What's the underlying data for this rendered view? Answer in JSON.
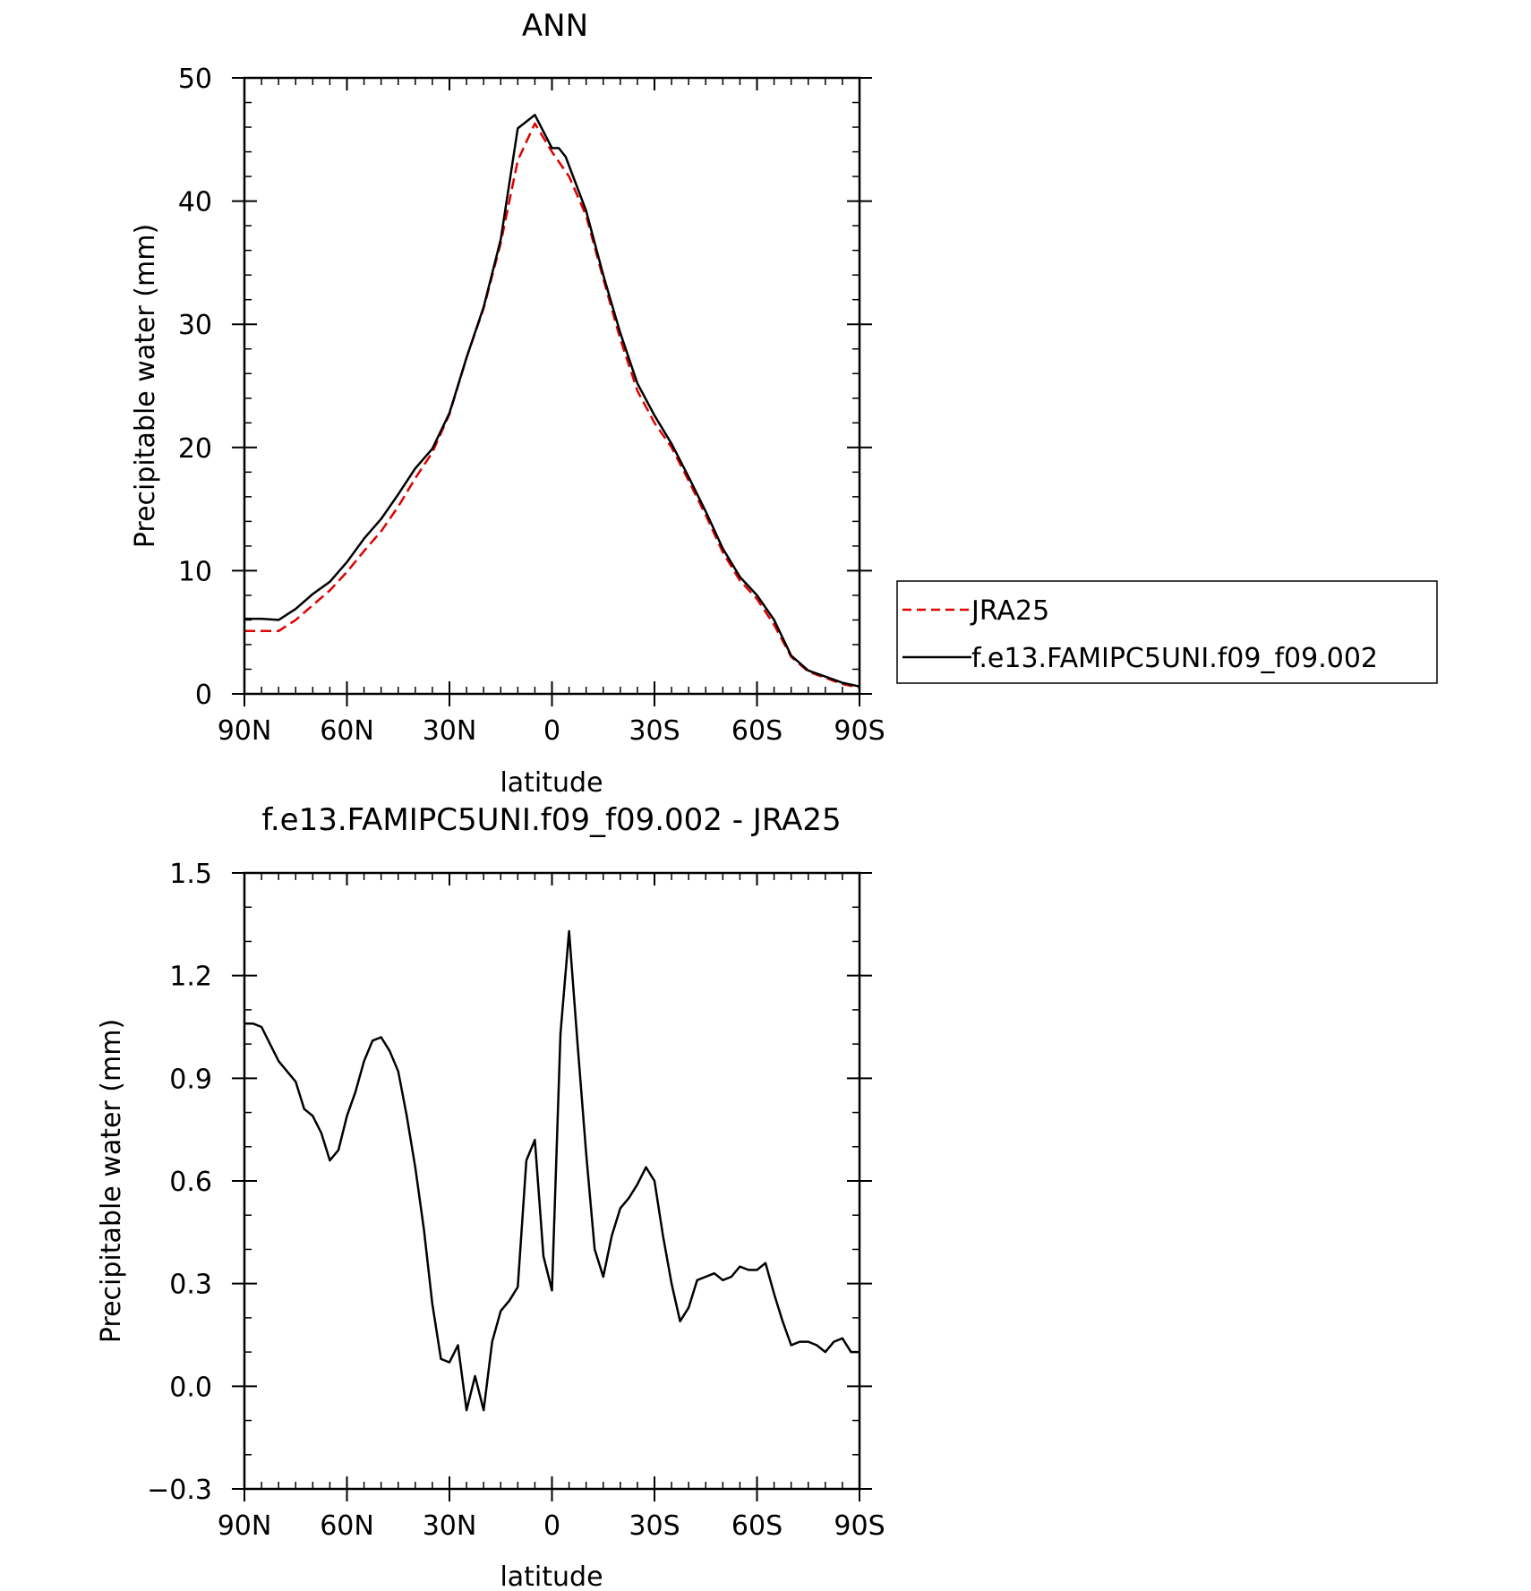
{
  "chart_data": [
    {
      "type": "line",
      "title": "ANN",
      "xlabel": "latitude",
      "ylabel": "Precipitable water (mm)",
      "xlim": [
        90,
        -90
      ],
      "ylim": [
        0,
        50
      ],
      "xticks": [
        {
          "value": 90,
          "label": "90N"
        },
        {
          "value": 60,
          "label": "60N"
        },
        {
          "value": 30,
          "label": "30N"
        },
        {
          "value": 0,
          "label": "0"
        },
        {
          "value": -30,
          "label": "30S"
        },
        {
          "value": -60,
          "label": "60S"
        },
        {
          "value": -90,
          "label": "90S"
        }
      ],
      "yticks": [
        {
          "value": 0,
          "label": "0"
        },
        {
          "value": 10,
          "label": "10"
        },
        {
          "value": 20,
          "label": "20"
        },
        {
          "value": 30,
          "label": "30"
        },
        {
          "value": 40,
          "label": "40"
        },
        {
          "value": 50,
          "label": "50"
        }
      ],
      "legend": "right",
      "series": [
        {
          "name": "JRA25",
          "color": "#e00000",
          "style": "dashed",
          "x": [
            90,
            85,
            80,
            75,
            70,
            65,
            60,
            55,
            50,
            45,
            40,
            35,
            30,
            25,
            20,
            15,
            10,
            5,
            0,
            -5,
            -10,
            -15,
            -20,
            -25,
            -30,
            -35,
            -40,
            -45,
            -50,
            -55,
            -60,
            -65,
            -70,
            -75,
            -80,
            -85,
            -90
          ],
          "y": [
            5.1,
            5.1,
            5.1,
            6.0,
            7.2,
            8.4,
            9.9,
            11.6,
            13.2,
            15.2,
            17.5,
            19.6,
            22.7,
            27.3,
            31.3,
            36.6,
            43.3,
            46.3,
            44.0,
            42.0,
            38.8,
            33.7,
            28.8,
            24.6,
            22.0,
            20.0,
            17.3,
            14.5,
            11.5,
            9.2,
            7.7,
            5.6,
            3.0,
            1.8,
            1.3,
            0.8,
            0.5
          ]
        },
        {
          "name": "f.e13.FAMIPC5UNI.f09_f09.002",
          "color": "#000000",
          "style": "solid",
          "x": [
            90,
            85,
            80,
            75,
            70,
            65,
            60,
            55,
            50,
            45,
            40,
            35,
            30,
            25,
            20,
            15,
            10,
            5,
            0,
            -2,
            -4,
            -10,
            -15,
            -20,
            -25,
            -30,
            -35,
            -40,
            -45,
            -50,
            -55,
            -60,
            -65,
            -70,
            -75,
            -80,
            -85,
            -90
          ],
          "y": [
            6.1,
            6.1,
            6.0,
            6.9,
            8.1,
            9.1,
            10.7,
            12.6,
            14.2,
            16.2,
            18.3,
            19.9,
            22.8,
            27.3,
            31.4,
            36.9,
            45.9,
            47.0,
            44.3,
            44.3,
            43.6,
            39.2,
            34.0,
            29.3,
            25.2,
            22.6,
            20.3,
            17.6,
            14.8,
            11.8,
            9.5,
            8.0,
            6.0,
            3.1,
            1.9,
            1.4,
            0.9,
            0.6
          ]
        }
      ]
    },
    {
      "type": "line",
      "title": "f.e13.FAMIPC5UNI.f09_f09.002 - JRA25",
      "xlabel": "latitude",
      "ylabel": "Precipitable water (mm)",
      "xlim": [
        90,
        -90
      ],
      "ylim": [
        -0.3,
        1.5
      ],
      "xticks": [
        {
          "value": 90,
          "label": "90N"
        },
        {
          "value": 60,
          "label": "60N"
        },
        {
          "value": 30,
          "label": "30N"
        },
        {
          "value": 0,
          "label": "0"
        },
        {
          "value": -30,
          "label": "30S"
        },
        {
          "value": -60,
          "label": "60S"
        },
        {
          "value": -90,
          "label": "90S"
        }
      ],
      "yticks": [
        {
          "value": -0.3,
          "label": "−0.3"
        },
        {
          "value": 0.0,
          "label": "0.0"
        },
        {
          "value": 0.3,
          "label": "0.3"
        },
        {
          "value": 0.6,
          "label": "0.6"
        },
        {
          "value": 0.9,
          "label": "0.9"
        },
        {
          "value": 1.2,
          "label": "1.2"
        },
        {
          "value": 1.5,
          "label": "1.5"
        }
      ],
      "series": [
        {
          "color": "#000000",
          "style": "solid",
          "x": [
            90,
            87.5,
            85,
            82.5,
            80,
            77.5,
            75,
            72.5,
            70,
            67.5,
            65,
            62.5,
            60,
            57.5,
            55,
            52.5,
            50,
            47.5,
            45,
            42.5,
            40,
            37.5,
            35,
            32.5,
            30,
            27.5,
            25,
            22.5,
            20,
            17.5,
            15,
            12.5,
            10,
            7.5,
            5,
            2.5,
            0,
            -2.5,
            -5,
            -7.5,
            -10,
            -12.5,
            -15,
            -17.5,
            -20,
            -22.5,
            -25,
            -27.5,
            -30,
            -32.5,
            -35,
            -37.5,
            -40,
            -42.5,
            -45,
            -47.5,
            -50,
            -52.5,
            -55,
            -57.5,
            -60,
            -62.5,
            -65,
            -67.5,
            -70,
            -72.5,
            -75,
            -77.5,
            -80,
            -82.5,
            -85,
            -87.5,
            -90
          ],
          "y": [
            1.06,
            1.06,
            1.05,
            1.0,
            0.95,
            0.92,
            0.89,
            0.81,
            0.79,
            0.74,
            0.66,
            0.69,
            0.79,
            0.86,
            0.95,
            1.01,
            1.02,
            0.98,
            0.92,
            0.79,
            0.64,
            0.46,
            0.24,
            0.08,
            0.07,
            0.12,
            -0.07,
            0.03,
            -0.07,
            0.13,
            0.22,
            0.25,
            0.29,
            0.66,
            0.72,
            0.38,
            0.28,
            1.03,
            1.33,
            1.0,
            0.68,
            0.4,
            0.32,
            0.44,
            0.52,
            0.55,
            0.59,
            0.64,
            0.6,
            0.44,
            0.3,
            0.19,
            0.23,
            0.31,
            0.32,
            0.33,
            0.31,
            0.32,
            0.35,
            0.34,
            0.34,
            0.36,
            0.27,
            0.19,
            0.12,
            0.13,
            0.13,
            0.12,
            0.1,
            0.13,
            0.14,
            0.1,
            0.1
          ]
        }
      ]
    }
  ]
}
